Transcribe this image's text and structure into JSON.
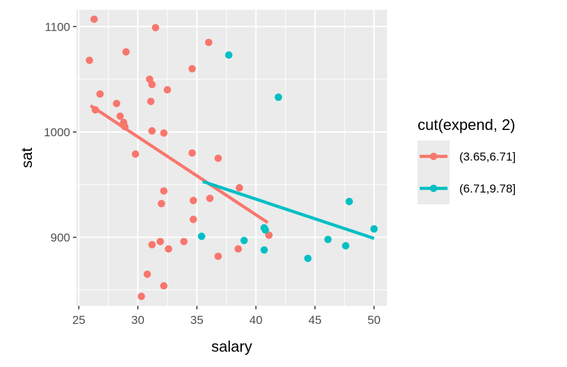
{
  "chart_data": {
    "type": "scatter",
    "xlabel": "salary",
    "ylabel": "sat",
    "xlim": [
      24.8,
      51.1
    ],
    "ylim": [
      835,
      1116
    ],
    "xticks": [
      25,
      30,
      35,
      40,
      45,
      50
    ],
    "yticks": [
      900,
      1000,
      1100
    ],
    "grid": true,
    "legend": {
      "title": "cut(expend, 2)",
      "placement": "right"
    },
    "series": [
      {
        "name": "(3.65,6.71]",
        "color": "#F8766D",
        "points": [
          [
            26.3,
            1107
          ],
          [
            31.5,
            1099
          ],
          [
            25.9,
            1068
          ],
          [
            29.0,
            1076
          ],
          [
            36.0,
            1085
          ],
          [
            34.6,
            1060
          ],
          [
            31.0,
            1050
          ],
          [
            31.2,
            1045
          ],
          [
            32.5,
            1040
          ],
          [
            26.8,
            1036
          ],
          [
            31.1,
            1029
          ],
          [
            28.2,
            1027
          ],
          [
            26.4,
            1021
          ],
          [
            28.5,
            1015
          ],
          [
            28.8,
            1009
          ],
          [
            28.9,
            1005
          ],
          [
            31.2,
            1001
          ],
          [
            32.2,
            999
          ],
          [
            29.8,
            979
          ],
          [
            34.6,
            980
          ],
          [
            36.8,
            975
          ],
          [
            38.6,
            947
          ],
          [
            32.2,
            944
          ],
          [
            36.1,
            937
          ],
          [
            34.7,
            935
          ],
          [
            32.0,
            932
          ],
          [
            34.7,
            917
          ],
          [
            41.1,
            902
          ],
          [
            31.9,
            896
          ],
          [
            33.9,
            896
          ],
          [
            31.2,
            893
          ],
          [
            32.6,
            889
          ],
          [
            38.5,
            889
          ],
          [
            36.8,
            882
          ],
          [
            30.8,
            865
          ],
          [
            32.2,
            854
          ],
          [
            30.3,
            844
          ]
        ],
        "fit": [
          [
            26.0,
            1025
          ],
          [
            41.0,
            914
          ]
        ]
      },
      {
        "name": "(6.71,9.78]",
        "color": "#00BFC4",
        "points": [
          [
            37.7,
            1073
          ],
          [
            41.9,
            1033
          ],
          [
            47.9,
            934
          ],
          [
            40.7,
            909
          ],
          [
            50.0,
            908
          ],
          [
            40.8,
            907
          ],
          [
            35.4,
            901
          ],
          [
            46.1,
            898
          ],
          [
            39.0,
            897
          ],
          [
            47.6,
            892
          ],
          [
            40.7,
            888
          ],
          [
            44.4,
            880
          ]
        ],
        "fit": [
          [
            35.5,
            953
          ],
          [
            50.0,
            899
          ]
        ]
      }
    ]
  }
}
